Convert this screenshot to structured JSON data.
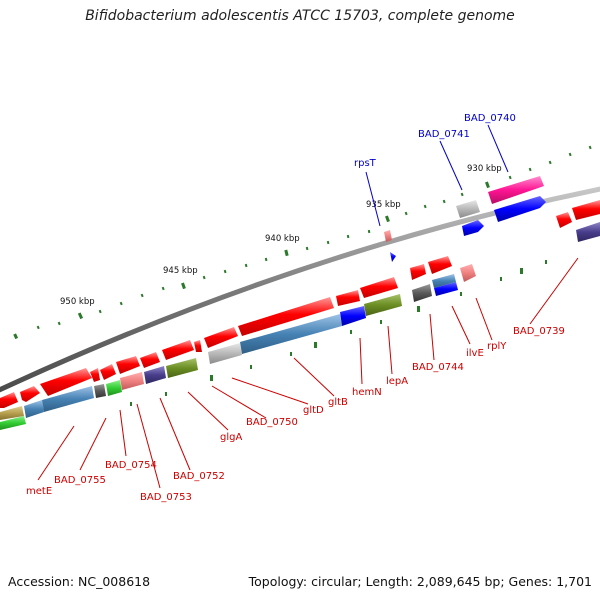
{
  "title": "Bifidobacterium adolescentis ATCC 15703, complete genome",
  "footer": {
    "accession": "Accession: NC_008618",
    "topology": "Topology: circular; Length: 2,089,645 bp; Genes: 1,701"
  },
  "scale_labels": [
    "950 kbp",
    "945 kbp",
    "940 kbp",
    "935 kbp",
    "930 kbp"
  ],
  "genes": [
    {
      "name": "metE",
      "color": "#cc0000"
    },
    {
      "name": "BAD_0755",
      "color": "#cc0000"
    },
    {
      "name": "BAD_0754",
      "color": "#cc0000"
    },
    {
      "name": "BAD_0753",
      "color": "#cc0000"
    },
    {
      "name": "BAD_0752",
      "color": "#cc0000"
    },
    {
      "name": "glgA",
      "color": "#cc0000"
    },
    {
      "name": "BAD_0750",
      "color": "#cc0000"
    },
    {
      "name": "gltD",
      "color": "#cc0000"
    },
    {
      "name": "gltB",
      "color": "#cc0000"
    },
    {
      "name": "hemN",
      "color": "#cc0000"
    },
    {
      "name": "lepA",
      "color": "#cc0000"
    },
    {
      "name": "BAD_0744",
      "color": "#cc0000"
    },
    {
      "name": "ilvE",
      "color": "#cc0000"
    },
    {
      "name": "rplY",
      "color": "#cc0000"
    },
    {
      "name": "BAD_0739",
      "color": "#cc0000"
    },
    {
      "name": "rpsT",
      "color": "#0000cc"
    },
    {
      "name": "BAD_0741",
      "color": "#0000cc"
    },
    {
      "name": "BAD_0740",
      "color": "#0000cc"
    }
  ],
  "colors": {
    "forward_gene": "#ff0000",
    "reverse_gene": "#ff0000",
    "backbone": "#808080",
    "tick": "#2a7a2a",
    "label_forward": "#cc0000",
    "label_reverse": "#0000cc"
  }
}
